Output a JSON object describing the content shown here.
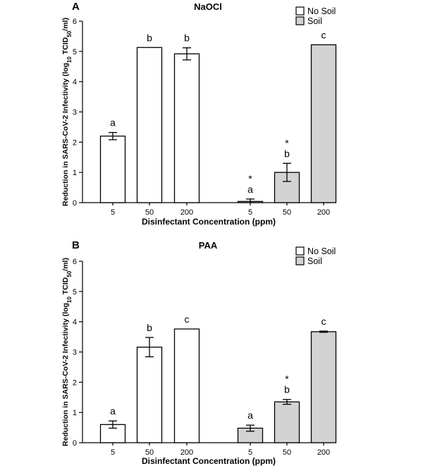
{
  "colors": {
    "no_soil_fill": "#ffffff",
    "soil_fill": "#d3d3d3",
    "stroke": "#000000"
  },
  "chart_data": [
    {
      "panel": "A",
      "type": "bar",
      "title": "NaOCl",
      "xlabel": "Disinfectant Concentration (ppm)",
      "ylabel_parts": {
        "pre": "Reduction in SARS-CoV-2 Infectivity (log",
        "sub1": "10",
        "mid": " TCID",
        "sub2": "50",
        "post": "/ml)"
      },
      "ylim": [
        0,
        6
      ],
      "yticks": [
        "0",
        "1",
        "2",
        "3",
        "4",
        "5",
        "6"
      ],
      "legend": [
        "No Soil",
        "Soil"
      ],
      "categories": [
        "5",
        "50",
        "200"
      ],
      "series": [
        {
          "name": "No Soil",
          "values": [
            2.2,
            5.13,
            4.92
          ],
          "errors": [
            0.12,
            0,
            0.2
          ],
          "labels": [
            "a",
            "b",
            "b"
          ],
          "stars": [
            "",
            "",
            ""
          ]
        },
        {
          "name": "Soil",
          "values": [
            0.04,
            1.0,
            5.22
          ],
          "errors": [
            0.08,
            0.3,
            0
          ],
          "labels": [
            "a",
            "b",
            "c"
          ],
          "stars": [
            "*",
            "*",
            ""
          ]
        }
      ]
    },
    {
      "panel": "B",
      "type": "bar",
      "title": "PAA",
      "xlabel": "Disinfectant Concentration (ppm)",
      "ylabel_parts": {
        "pre": "Reduction in SARS-CoV-2 Infectivity (log",
        "sub1": "10",
        "mid": " TCID",
        "sub2": "50",
        "post": "/ml)"
      },
      "ylim": [
        0,
        6
      ],
      "yticks": [
        "0",
        "1",
        "2",
        "3",
        "4",
        "5",
        "6"
      ],
      "legend": [
        "No Soil",
        "Soil"
      ],
      "categories": [
        "5",
        "50",
        "200"
      ],
      "series": [
        {
          "name": "No Soil",
          "values": [
            0.6,
            3.16,
            3.76
          ],
          "errors": [
            0.12,
            0.32,
            0
          ],
          "labels": [
            "a",
            "b",
            "c"
          ],
          "stars": [
            "",
            "",
            ""
          ]
        },
        {
          "name": "Soil",
          "values": [
            0.48,
            1.35,
            3.67
          ],
          "errors": [
            0.1,
            0.08,
            0.02
          ],
          "labels": [
            "a",
            "b",
            "c"
          ],
          "stars": [
            "",
            "*",
            ""
          ]
        }
      ]
    }
  ]
}
